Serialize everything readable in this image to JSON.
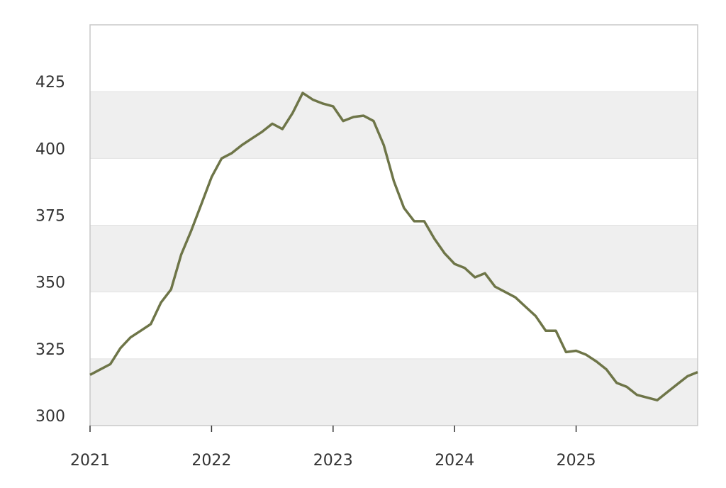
{
  "chart_data": {
    "type": "line",
    "x": [
      2021,
      2021.083,
      2021.167,
      2021.25,
      2021.333,
      2021.417,
      2021.5,
      2021.583,
      2021.667,
      2021.75,
      2021.833,
      2021.917,
      2022,
      2022.083,
      2022.167,
      2022.25,
      2022.333,
      2022.417,
      2022.5,
      2022.583,
      2022.667,
      2022.75,
      2022.833,
      2022.917,
      2023,
      2023.083,
      2023.167,
      2023.25,
      2023.333,
      2023.417,
      2023.5,
      2023.583,
      2023.667,
      2023.75,
      2023.833,
      2023.917,
      2024,
      2024.083,
      2024.167,
      2024.25,
      2024.333,
      2024.417,
      2024.5,
      2024.583,
      2024.667,
      2024.75,
      2024.833,
      2024.917,
      2025,
      2025.083,
      2025.167,
      2025.25,
      2025.333,
      2025.417,
      2025.5,
      2025.583,
      2025.667,
      2025.75,
      2025.833,
      2025.917,
      2026
    ],
    "series": [
      {
        "color": "#6e7548",
        "values": [
          319,
          321,
          323,
          329,
          333,
          335.5,
          338,
          346,
          351,
          364,
          373,
          383,
          393,
          400,
          402,
          405,
          407.5,
          410,
          413,
          411,
          417,
          424.5,
          422,
          420.5,
          419.5,
          414,
          415.5,
          416,
          414,
          405,
          391.5,
          381.5,
          376.5,
          376.5,
          370,
          364.5,
          360.5,
          359,
          355.5,
          357,
          352,
          350,
          348,
          344.5,
          341,
          335.5,
          335.5,
          327.5,
          328,
          326.5,
          324,
          321,
          316,
          314.5,
          311.5,
          310.5,
          309.5,
          312.5,
          315.5,
          318.5,
          320
        ]
      }
    ],
    "xlim": [
      2021,
      2026
    ],
    "xticks": [
      2021,
      2022,
      2023,
      2024,
      2025
    ],
    "ylim": [
      300,
      450
    ],
    "yticks": [
      300,
      325,
      350,
      375,
      400,
      425
    ],
    "bands": true,
    "band_color": "#efefef"
  }
}
